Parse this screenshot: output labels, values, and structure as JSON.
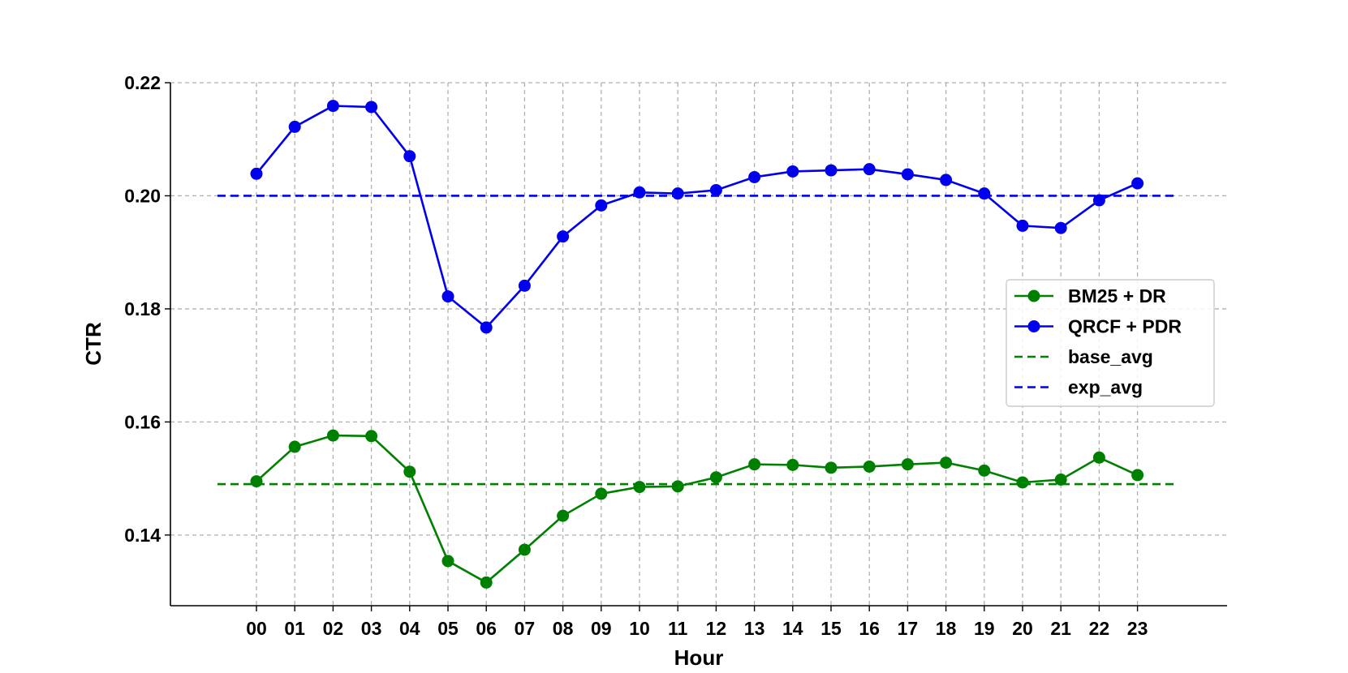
{
  "chart_data": {
    "type": "line",
    "xlabel": "Hour",
    "ylabel": "CTR",
    "categories": [
      "00",
      "01",
      "02",
      "03",
      "04",
      "05",
      "06",
      "07",
      "08",
      "09",
      "10",
      "11",
      "12",
      "13",
      "14",
      "15",
      "16",
      "17",
      "18",
      "19",
      "20",
      "21",
      "22",
      "23"
    ],
    "ylim": [
      0.1275,
      0.22
    ],
    "yticks": [
      "0.14",
      "0.16",
      "0.18",
      "0.20",
      "0.22"
    ],
    "grid": true,
    "legend_position": "center-right",
    "series": [
      {
        "name": "BM25 + DR",
        "style": "solid-marker",
        "color": "#008000",
        "values": [
          0.1495,
          0.1556,
          0.1576,
          0.1575,
          0.1512,
          0.1354,
          0.1316,
          0.1374,
          0.1434,
          0.1473,
          0.1485,
          0.1486,
          0.1502,
          0.1525,
          0.1524,
          0.1519,
          0.1521,
          0.1525,
          0.1528,
          0.1514,
          0.1493,
          0.1498,
          0.1537,
          0.1506
        ]
      },
      {
        "name": "QRCF + PDR",
        "style": "solid-marker",
        "color": "#0000ee",
        "values": [
          0.2039,
          0.2122,
          0.2159,
          0.2157,
          0.207,
          0.1822,
          0.1767,
          0.1841,
          0.1928,
          0.1983,
          0.2006,
          0.2004,
          0.201,
          0.2033,
          0.2043,
          0.2045,
          0.2047,
          0.2038,
          0.2028,
          0.2004,
          0.1947,
          0.1943,
          0.1992,
          0.2022
        ]
      },
      {
        "name": "base_avg",
        "style": "dashed",
        "color": "#008000",
        "value": 0.149
      },
      {
        "name": "exp_avg",
        "style": "dashed",
        "color": "#0000ee",
        "value": 0.2
      }
    ]
  }
}
